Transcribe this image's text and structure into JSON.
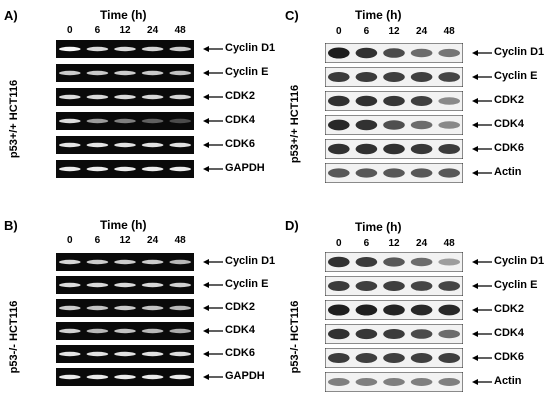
{
  "panels": [
    {
      "label": "A)",
      "type": "rt-pcr",
      "time_title": "Time (h)",
      "time_points": [
        "0",
        "6",
        "12",
        "24",
        "48"
      ],
      "cell_line": "p53+/+ HCT116",
      "rows": [
        {
          "gene": "Cyclin D1",
          "intensity": [
            0.95,
            0.72,
            0.72,
            0.68,
            0.62
          ]
        },
        {
          "gene": "Cyclin E",
          "intensity": [
            0.62,
            0.6,
            0.62,
            0.6,
            0.58
          ]
        },
        {
          "gene": "CDK2",
          "intensity": [
            0.75,
            0.72,
            0.72,
            0.7,
            0.68
          ]
        },
        {
          "gene": "CDK4",
          "intensity": [
            0.75,
            0.45,
            0.35,
            0.22,
            0.12
          ]
        },
        {
          "gene": "CDK6",
          "intensity": [
            0.8,
            0.8,
            0.78,
            0.78,
            0.78
          ]
        },
        {
          "gene": "GAPDH",
          "intensity": [
            0.85,
            0.85,
            0.85,
            0.85,
            0.85
          ]
        }
      ]
    },
    {
      "label": "B)",
      "type": "rt-pcr",
      "time_title": "Time (h)",
      "time_points": [
        "0",
        "6",
        "12",
        "24",
        "48"
      ],
      "cell_line": "p53-/- HCT116",
      "rows": [
        {
          "gene": "Cyclin D1",
          "intensity": [
            0.7,
            0.62,
            0.62,
            0.62,
            0.55
          ]
        },
        {
          "gene": "Cyclin E",
          "intensity": [
            0.75,
            0.72,
            0.72,
            0.7,
            0.65
          ]
        },
        {
          "gene": "CDK2",
          "intensity": [
            0.62,
            0.58,
            0.6,
            0.58,
            0.55
          ]
        },
        {
          "gene": "CDK4",
          "intensity": [
            0.65,
            0.55,
            0.58,
            0.55,
            0.5
          ]
        },
        {
          "gene": "CDK6",
          "intensity": [
            0.8,
            0.78,
            0.78,
            0.78,
            0.75
          ]
        },
        {
          "gene": "GAPDH",
          "intensity": [
            0.85,
            0.85,
            0.85,
            0.85,
            0.85
          ]
        }
      ]
    },
    {
      "label": "C)",
      "type": "western",
      "time_title": "Time (h)",
      "time_points": [
        "0",
        "6",
        "12",
        "24",
        "48"
      ],
      "cell_line": "p53+/+ HCT116",
      "rows": [
        {
          "gene": "Cyclin D1",
          "intensity": [
            0.95,
            0.85,
            0.72,
            0.55,
            0.5
          ]
        },
        {
          "gene": "Cyclin E",
          "intensity": [
            0.8,
            0.8,
            0.78,
            0.78,
            0.75
          ]
        },
        {
          "gene": "CDK2",
          "intensity": [
            0.85,
            0.85,
            0.82,
            0.78,
            0.4
          ]
        },
        {
          "gene": "CDK4",
          "intensity": [
            0.9,
            0.85,
            0.7,
            0.55,
            0.4
          ]
        },
        {
          "gene": "CDK6",
          "intensity": [
            0.85,
            0.85,
            0.85,
            0.82,
            0.8
          ]
        },
        {
          "gene": "Actin",
          "intensity": [
            0.65,
            0.65,
            0.65,
            0.65,
            0.65
          ]
        }
      ]
    },
    {
      "label": "D)",
      "type": "western",
      "time_title": "Time (h)",
      "time_points": [
        "0",
        "6",
        "12",
        "24",
        "48"
      ],
      "cell_line": "p53-/- HCT116",
      "rows": [
        {
          "gene": "Cyclin D1",
          "intensity": [
            0.85,
            0.8,
            0.65,
            0.55,
            0.3
          ]
        },
        {
          "gene": "Cyclin E",
          "intensity": [
            0.8,
            0.78,
            0.78,
            0.75,
            0.75
          ]
        },
        {
          "gene": "CDK2",
          "intensity": [
            0.95,
            0.95,
            0.92,
            0.9,
            0.9
          ]
        },
        {
          "gene": "CDK4",
          "intensity": [
            0.85,
            0.82,
            0.8,
            0.72,
            0.55
          ]
        },
        {
          "gene": "CDK6",
          "intensity": [
            0.8,
            0.78,
            0.78,
            0.78,
            0.78
          ]
        },
        {
          "gene": "Actin",
          "intensity": [
            0.45,
            0.45,
            0.45,
            0.45,
            0.45
          ]
        }
      ]
    }
  ]
}
